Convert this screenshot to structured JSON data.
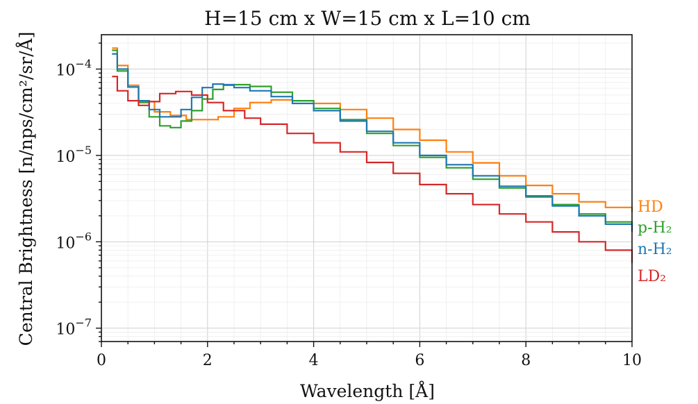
{
  "chart_data": {
    "type": "line",
    "title": "H=15 cm x W=15 cm x L=10 cm",
    "xlabel": "Wavelength [Å]",
    "ylabel": "Central Brightness [n/nps/cm²/sr/Å]",
    "xlim": [
      0,
      10
    ],
    "ylim": [
      7e-08,
      0.00025
    ],
    "yscale": "log",
    "grid": true,
    "legend": "labels at right end of lines",
    "x_ticks": [
      "0",
      "2",
      "4",
      "6",
      "8",
      "10"
    ],
    "y_ticks": [
      {
        "base": "10",
        "exp": "−4"
      },
      {
        "base": "10",
        "exp": "−5"
      },
      {
        "base": "10",
        "exp": "−6"
      },
      {
        "base": "10",
        "exp": "−7"
      }
    ],
    "series": [
      {
        "name": "HD",
        "color": "#ff7f0e",
        "x": [
          0.2,
          0.3,
          0.5,
          0.7,
          1.0,
          1.3,
          1.6,
          1.9,
          2.2,
          2.5,
          2.8,
          3.2,
          3.6,
          4.0,
          4.5,
          5.0,
          5.5,
          6.0,
          6.5,
          7.0,
          7.5,
          8.0,
          8.5,
          9.0,
          9.5,
          10.0
        ],
        "y": [
          0.000175,
          0.00011,
          6.5e-05,
          4.2e-05,
          3.2e-05,
          2.9e-05,
          2.6e-05,
          2.6e-05,
          2.8e-05,
          3.5e-05,
          4.1e-05,
          4.4e-05,
          4.3e-05,
          4e-05,
          3.4e-05,
          2.7e-05,
          2e-05,
          1.5e-05,
          1.1e-05,
          8.2e-06,
          5.8e-06,
          4.5e-06,
          3.6e-06,
          2.9e-06,
          2.5e-06,
          2.2e-06
        ]
      },
      {
        "name": "p-H₂",
        "color": "#2ca02c",
        "x": [
          0.2,
          0.3,
          0.5,
          0.7,
          0.9,
          1.1,
          1.3,
          1.5,
          1.7,
          1.9,
          2.1,
          2.3,
          2.5,
          2.8,
          3.2,
          3.6,
          4.0,
          4.5,
          5.0,
          5.5,
          6.0,
          6.5,
          7.0,
          7.5,
          8.0,
          8.5,
          9.0,
          9.5,
          10.0
        ],
        "y": [
          0.000165,
          9.5e-05,
          6.2e-05,
          4.1e-05,
          2.8e-05,
          2.2e-05,
          2.1e-05,
          2.5e-05,
          3.3e-05,
          4.5e-05,
          5.8e-05,
          6.5e-05,
          6.6e-05,
          6.3e-05,
          5.4e-05,
          4.3e-05,
          3.5e-05,
          2.6e-05,
          1.8e-05,
          1.3e-05,
          9.5e-06,
          7.2e-06,
          5.3e-06,
          4.2e-06,
          3.3e-06,
          2.7e-06,
          2.1e-06,
          1.7e-06,
          1.4e-06
        ]
      },
      {
        "name": "n-H₂",
        "color": "#1f77b4",
        "x": [
          0.2,
          0.3,
          0.5,
          0.7,
          0.9,
          1.1,
          1.3,
          1.5,
          1.7,
          1.9,
          2.1,
          2.3,
          2.5,
          2.8,
          3.2,
          3.6,
          4.0,
          4.5,
          5.0,
          5.5,
          6.0,
          6.5,
          7.0,
          7.5,
          8.0,
          8.5,
          9.0,
          9.5,
          10.0
        ],
        "y": [
          0.00015,
          0.0001,
          6.2e-05,
          4.3e-05,
          3.4e-05,
          2.8e-05,
          2.8e-05,
          3.4e-05,
          4.7e-05,
          6.1e-05,
          6.7e-05,
          6.6e-05,
          6.1e-05,
          5.6e-05,
          4.8e-05,
          4e-05,
          3.3e-05,
          2.5e-05,
          1.9e-05,
          1.4e-05,
          1e-05,
          7.8e-06,
          5.8e-06,
          4.4e-06,
          3.4e-06,
          2.6e-06,
          2e-06,
          1.6e-06,
          1.3e-06
        ]
      },
      {
        "name": "LD₂",
        "color": "#d62728",
        "x": [
          0.2,
          0.3,
          0.5,
          0.7,
          0.9,
          1.1,
          1.4,
          1.7,
          2.0,
          2.3,
          2.7,
          3.0,
          3.5,
          4.0,
          4.5,
          5.0,
          5.5,
          6.0,
          6.5,
          7.0,
          7.5,
          8.0,
          8.5,
          9.0,
          9.5,
          10.0
        ],
        "y": [
          8.2e-05,
          5.6e-05,
          4.3e-05,
          3.8e-05,
          4.2e-05,
          5.2e-05,
          5.5e-05,
          5e-05,
          4.1e-05,
          3.3e-05,
          2.7e-05,
          2.3e-05,
          1.8e-05,
          1.4e-05,
          1.1e-05,
          8.3e-06,
          6.2e-06,
          4.6e-06,
          3.6e-06,
          2.7e-06,
          2.1e-06,
          1.7e-06,
          1.3e-06,
          1e-06,
          8e-07,
          5.7e-07
        ]
      }
    ]
  }
}
